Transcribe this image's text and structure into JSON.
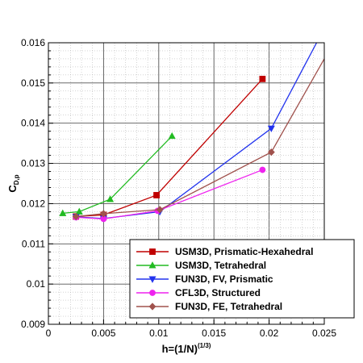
{
  "chart_data": {
    "type": "line",
    "xlabel": {
      "main": "h=(1/N)",
      "sup": "(1/3)"
    },
    "ylabel": {
      "main": "C",
      "sub": "D,p"
    },
    "xlim": [
      0,
      0.025
    ],
    "ylim": [
      0.009,
      0.016
    ],
    "x_ticks": [
      "0",
      "0.005",
      "0.01",
      "0.015",
      "0.02",
      "0.025"
    ],
    "y_ticks": [
      "0.009",
      "0.01",
      "0.011",
      "0.012",
      "0.013",
      "0.014",
      "0.015",
      "0.016"
    ],
    "grid": true,
    "legend_position": "bottom-right",
    "series": [
      {
        "name": "USM3D, Prismatic-Hexahedral",
        "color": "#c00000",
        "marker": "square",
        "x": [
          0.0025,
          0.005,
          0.0098,
          0.0194
        ],
        "y": [
          0.01168,
          0.01172,
          0.01221,
          0.0151
        ]
      },
      {
        "name": "USM3D, Tetrahedral",
        "color": "#22bb22",
        "marker": "triangle-up",
        "x": [
          0.0013,
          0.0028,
          0.0056,
          0.0112
        ],
        "y": [
          0.01176,
          0.0118,
          0.01211,
          0.01368
        ]
      },
      {
        "name": "FUN3D, FV, Prismatic",
        "color": "#2233ee",
        "marker": "triangle-down",
        "x": [
          0.0025,
          0.005,
          0.0101,
          0.0202,
          0.0244
        ],
        "y": [
          0.01167,
          0.01163,
          0.0118,
          0.01387,
          0.01605
        ]
      },
      {
        "name": "CFL3D, Structured",
        "color": "#ee22ee",
        "marker": "circle",
        "x": [
          0.0025,
          0.005,
          0.0099,
          0.0194
        ],
        "y": [
          0.01166,
          0.01162,
          0.01182,
          0.01284
        ]
      },
      {
        "name": "FUN3D, FE, Tetrahedral",
        "color": "#a0524d",
        "marker": "diamond",
        "x": [
          0.0025,
          0.005,
          0.0101,
          0.0202,
          0.025
        ],
        "y": [
          0.01168,
          0.01175,
          0.01185,
          0.01328,
          0.0156
        ]
      }
    ]
  }
}
